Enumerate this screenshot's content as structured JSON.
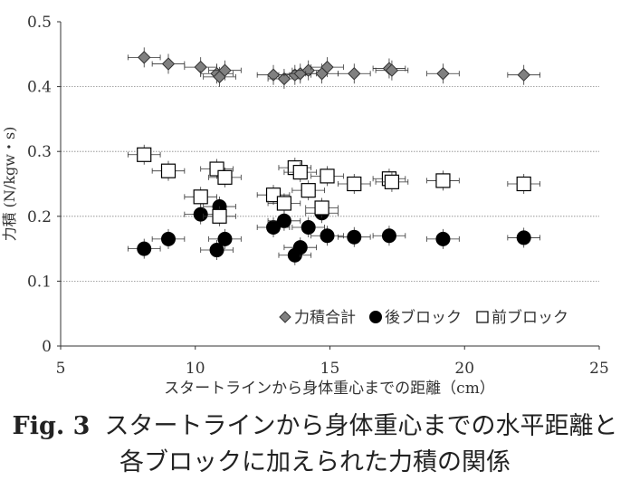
{
  "caption": {
    "number": "Fig. 3",
    "line1": "スタートラインから身体重心までの水平距離と",
    "line2": "各ブロックに加えられた力積の関係"
  },
  "chart_data": {
    "type": "scatter",
    "xlabel": "スタートラインから身体重心までの距離（cm）",
    "ylabel": "力積 (N/kgw・s)",
    "xlim": [
      5,
      25
    ],
    "ylim": [
      0,
      0.5
    ],
    "xticks": [
      "5",
      "10",
      "15",
      "20",
      "25"
    ],
    "yticks": [
      "0",
      "0.1",
      "0.2",
      "0.3",
      "0.4",
      "0.5"
    ],
    "grid": "horizontal dotted lines at 0.1–0.4",
    "legend_position": "bottom-right",
    "series": [
      {
        "name": "力積合計",
        "marker": "diamond",
        "color": "#808080",
        "points": [
          [
            8.1,
            0.445
          ],
          [
            9.0,
            0.435
          ],
          [
            10.2,
            0.43
          ],
          [
            10.8,
            0.42
          ],
          [
            10.9,
            0.415
          ],
          [
            11.1,
            0.425
          ],
          [
            12.9,
            0.418
          ],
          [
            13.3,
            0.412
          ],
          [
            13.7,
            0.418
          ],
          [
            13.9,
            0.42
          ],
          [
            14.2,
            0.425
          ],
          [
            14.7,
            0.42
          ],
          [
            14.9,
            0.43
          ],
          [
            15.9,
            0.42
          ],
          [
            17.2,
            0.428
          ],
          [
            17.3,
            0.425
          ],
          [
            19.2,
            0.42
          ],
          [
            22.2,
            0.418
          ]
        ]
      },
      {
        "name": "後ブロック",
        "marker": "circle",
        "color": "#000000",
        "points": [
          [
            8.1,
            0.15
          ],
          [
            9.0,
            0.165
          ],
          [
            10.2,
            0.203
          ],
          [
            10.8,
            0.148
          ],
          [
            10.9,
            0.215
          ],
          [
            11.1,
            0.165
          ],
          [
            12.9,
            0.183
          ],
          [
            13.3,
            0.193
          ],
          [
            13.7,
            0.14
          ],
          [
            13.9,
            0.152
          ],
          [
            14.2,
            0.183
          ],
          [
            14.7,
            0.205
          ],
          [
            14.9,
            0.17
          ],
          [
            15.9,
            0.168
          ],
          [
            17.2,
            0.17
          ],
          [
            19.2,
            0.165
          ],
          [
            22.2,
            0.167
          ]
        ]
      },
      {
        "name": "前ブロック",
        "marker": "square",
        "color": "#ffffff",
        "points": [
          [
            8.1,
            0.295
          ],
          [
            9.0,
            0.27
          ],
          [
            10.2,
            0.23
          ],
          [
            10.8,
            0.273
          ],
          [
            10.9,
            0.2
          ],
          [
            11.1,
            0.26
          ],
          [
            12.9,
            0.233
          ],
          [
            13.3,
            0.22
          ],
          [
            13.7,
            0.275
          ],
          [
            13.9,
            0.268
          ],
          [
            14.2,
            0.24
          ],
          [
            14.7,
            0.213
          ],
          [
            14.9,
            0.262
          ],
          [
            15.9,
            0.25
          ],
          [
            17.2,
            0.258
          ],
          [
            17.3,
            0.253
          ],
          [
            19.2,
            0.255
          ],
          [
            22.2,
            0.25
          ]
        ]
      }
    ]
  }
}
